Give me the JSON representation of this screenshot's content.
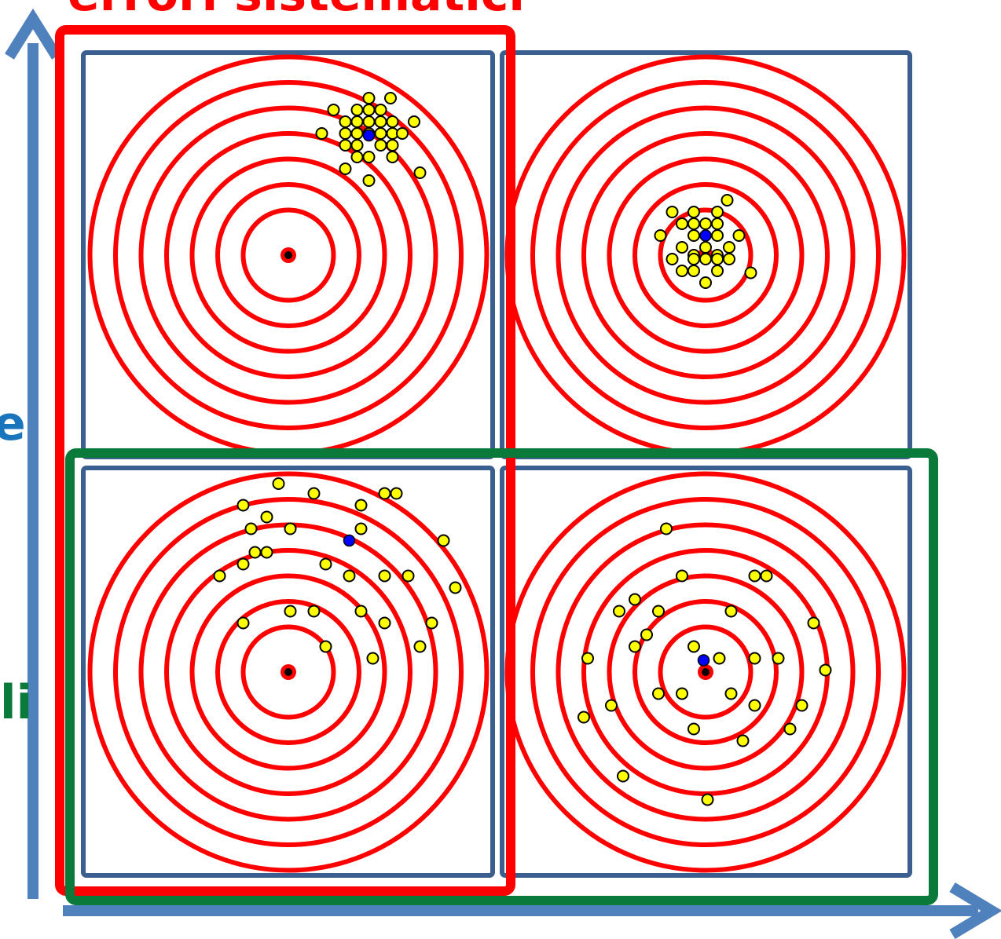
{
  "labels": {
    "top_red": "errori sistematici",
    "left_blue": "e",
    "left_green": "li"
  },
  "colors": {
    "axis": "#4f81bd",
    "panel_border": "#3b5f8f",
    "ring": "#ff0000",
    "systematic_frame": "#ff0000",
    "random_frame": "#0a7a3a",
    "shot": "#ffff00",
    "shot_stroke": "#000000",
    "mean": "#0000ff",
    "bullseye_center": "#000000",
    "label_red": "#ff0000",
    "label_blue": "#1b75bc",
    "label_green": "#0a7a3a"
  },
  "targets": [
    {
      "id": "top-left",
      "rings": 7,
      "mean": [
        0.41,
        0.61
      ],
      "shots": [
        [
          0.41,
          0.8
        ],
        [
          0.52,
          0.8
        ],
        [
          0.23,
          0.74
        ],
        [
          0.35,
          0.74
        ],
        [
          0.41,
          0.74
        ],
        [
          0.47,
          0.74
        ],
        [
          0.29,
          0.68
        ],
        [
          0.35,
          0.68
        ],
        [
          0.41,
          0.68
        ],
        [
          0.47,
          0.68
        ],
        [
          0.53,
          0.68
        ],
        [
          0.64,
          0.68
        ],
        [
          0.17,
          0.62
        ],
        [
          0.29,
          0.62
        ],
        [
          0.35,
          0.62
        ],
        [
          0.41,
          0.62
        ],
        [
          0.47,
          0.62
        ],
        [
          0.53,
          0.62
        ],
        [
          0.58,
          0.62
        ],
        [
          0.29,
          0.56
        ],
        [
          0.35,
          0.56
        ],
        [
          0.47,
          0.56
        ],
        [
          0.53,
          0.56
        ],
        [
          0.35,
          0.5
        ],
        [
          0.41,
          0.5
        ],
        [
          0.53,
          0.5
        ],
        [
          0.29,
          0.44
        ],
        [
          0.41,
          0.38
        ],
        [
          0.67,
          0.42
        ]
      ]
    },
    {
      "id": "top-right",
      "rings": 7,
      "mean": [
        0.0,
        0.1
      ],
      "shots": [
        [
          -0.17,
          0.22
        ],
        [
          -0.06,
          0.22
        ],
        [
          0.06,
          0.22
        ],
        [
          0.11,
          0.28
        ],
        [
          -0.12,
          0.16
        ],
        [
          -0.06,
          0.16
        ],
        [
          0.0,
          0.16
        ],
        [
          0.06,
          0.16
        ],
        [
          -0.23,
          0.1
        ],
        [
          -0.06,
          0.1
        ],
        [
          0.06,
          0.1
        ],
        [
          0.17,
          0.1
        ],
        [
          -0.12,
          0.04
        ],
        [
          0.0,
          0.04
        ],
        [
          0.12,
          0.04
        ],
        [
          -0.06,
          0.0
        ],
        [
          0.06,
          0.0
        ],
        [
          -0.17,
          -0.02
        ],
        [
          -0.06,
          -0.02
        ],
        [
          0.0,
          -0.02
        ],
        [
          0.06,
          -0.02
        ],
        [
          0.12,
          -0.02
        ],
        [
          -0.12,
          -0.08
        ],
        [
          -0.06,
          -0.08
        ],
        [
          0.06,
          -0.08
        ],
        [
          0.23,
          -0.09
        ],
        [
          0.0,
          -0.14
        ]
      ]
    },
    {
      "id": "bottom-left",
      "rings": 7,
      "mean": [
        0.31,
        0.67
      ],
      "shots": [
        [
          -0.05,
          0.96
        ],
        [
          0.13,
          0.91
        ],
        [
          0.49,
          0.91
        ],
        [
          0.55,
          0.91
        ],
        [
          -0.23,
          0.85
        ],
        [
          0.37,
          0.85
        ],
        [
          -0.11,
          0.79
        ],
        [
          -0.19,
          0.73
        ],
        [
          0.01,
          0.73
        ],
        [
          0.37,
          0.73
        ],
        [
          0.79,
          0.67
        ],
        [
          -0.17,
          0.61
        ],
        [
          -0.11,
          0.61
        ],
        [
          -0.23,
          0.55
        ],
        [
          0.19,
          0.55
        ],
        [
          -0.35,
          0.49
        ],
        [
          0.31,
          0.49
        ],
        [
          0.49,
          0.49
        ],
        [
          0.61,
          0.49
        ],
        [
          0.85,
          0.43
        ],
        [
          0.01,
          0.31
        ],
        [
          0.13,
          0.31
        ],
        [
          0.37,
          0.31
        ],
        [
          -0.23,
          0.25
        ],
        [
          0.49,
          0.25
        ],
        [
          0.73,
          0.25
        ],
        [
          0.19,
          0.13
        ],
        [
          0.67,
          0.13
        ],
        [
          0.43,
          0.07
        ]
      ]
    },
    {
      "id": "bottom-right",
      "rings": 7,
      "mean": [
        -0.01,
        0.06
      ],
      "shots": [
        [
          -0.2,
          0.73
        ],
        [
          -0.12,
          0.49
        ],
        [
          0.25,
          0.49
        ],
        [
          0.31,
          0.49
        ],
        [
          -0.36,
          0.37
        ],
        [
          -0.44,
          0.31
        ],
        [
          -0.24,
          0.31
        ],
        [
          0.13,
          0.31
        ],
        [
          0.55,
          0.25
        ],
        [
          -0.3,
          0.19
        ],
        [
          -0.36,
          0.13
        ],
        [
          -0.06,
          0.13
        ],
        [
          -0.6,
          0.07
        ],
        [
          0.07,
          0.07
        ],
        [
          0.25,
          0.07
        ],
        [
          0.37,
          0.07
        ],
        [
          0.61,
          0.01
        ],
        [
          -0.24,
          -0.11
        ],
        [
          -0.12,
          -0.11
        ],
        [
          0.13,
          -0.11
        ],
        [
          -0.48,
          -0.17
        ],
        [
          0.25,
          -0.17
        ],
        [
          0.49,
          -0.17
        ],
        [
          -0.62,
          -0.23
        ],
        [
          -0.06,
          -0.29
        ],
        [
          0.43,
          -0.29
        ],
        [
          0.19,
          -0.35
        ],
        [
          -0.42,
          -0.53
        ],
        [
          0.01,
          -0.65
        ]
      ]
    }
  ]
}
